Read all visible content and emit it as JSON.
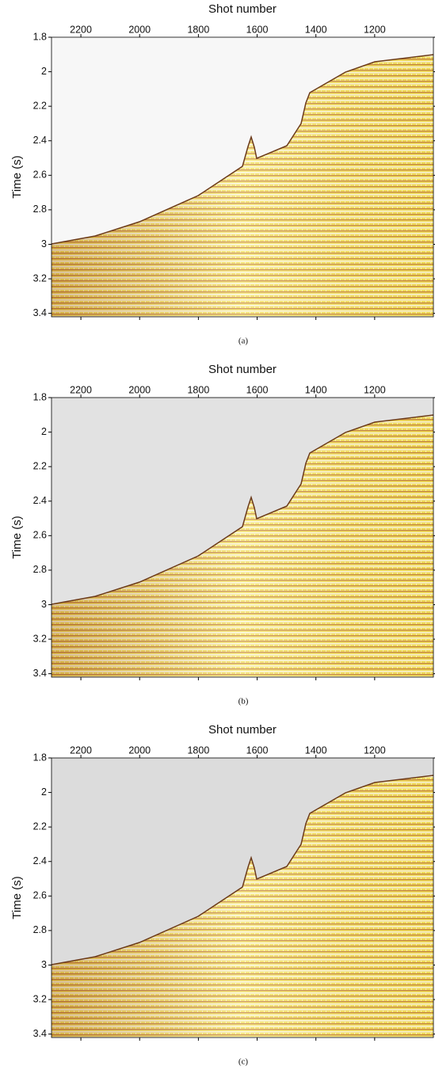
{
  "chart_data": [
    {
      "type": "seismic",
      "xlabel": "Shot number",
      "ylabel": "Time (s)",
      "caption": "(a)",
      "xlim": [
        2300,
        1000
      ],
      "xticks": [
        2200,
        2000,
        1800,
        1600,
        1400,
        1200
      ],
      "ylim": [
        1.8,
        3.42
      ],
      "yticks": [
        1.8,
        2,
        2.2,
        2.4,
        2.6,
        2.8,
        3,
        3.2,
        3.4
      ],
      "background": "#f7f7f7"
    },
    {
      "type": "seismic",
      "xlabel": "Shot number",
      "ylabel": "Time (s)",
      "caption": "(b)",
      "xlim": [
        2300,
        1000
      ],
      "xticks": [
        2200,
        2000,
        1800,
        1600,
        1400,
        1200
      ],
      "ylim": [
        1.8,
        3.42
      ],
      "yticks": [
        1.8,
        2,
        2.2,
        2.4,
        2.6,
        2.8,
        3,
        3.2,
        3.4
      ],
      "background": "#e2e2e2"
    },
    {
      "type": "seismic",
      "xlabel": "Shot number",
      "ylabel": "Time (s)",
      "caption": "(c)",
      "xlim": [
        2300,
        1000
      ],
      "xticks": [
        2200,
        2000,
        1800,
        1600,
        1400,
        1200
      ],
      "ylim": [
        1.8,
        3.42
      ],
      "yticks": [
        1.8,
        2,
        2.2,
        2.4,
        2.6,
        2.8,
        3,
        3.2,
        3.4
      ],
      "background": "#dcdcdc"
    }
  ]
}
